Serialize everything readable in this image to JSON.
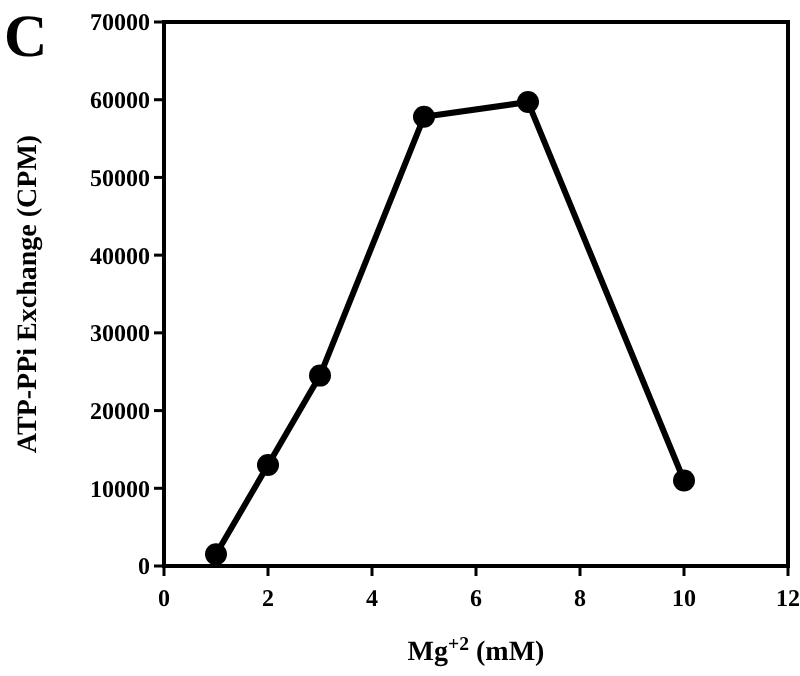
{
  "chart_data": {
    "type": "line",
    "title": "C",
    "xlabel": "Mg$^{+2}$ (mM)",
    "ylabel": "ATP-PPi Exchange (CPM)",
    "x": [
      1,
      2,
      3,
      5,
      7,
      10
    ],
    "series": [
      {
        "color": "#000000",
        "values": [
          1500,
          13000,
          24500,
          57800,
          59700,
          11000
        ]
      }
    ],
    "xlim": [
      0,
      12
    ],
    "xticks": [
      0,
      2,
      4,
      6,
      8,
      10,
      12
    ],
    "ylim": [
      0,
      70000
    ],
    "yticks": [
      0,
      10000,
      20000,
      30000,
      40000,
      50000,
      60000,
      70000
    ],
    "marker": "circle",
    "line_style": "solid"
  }
}
